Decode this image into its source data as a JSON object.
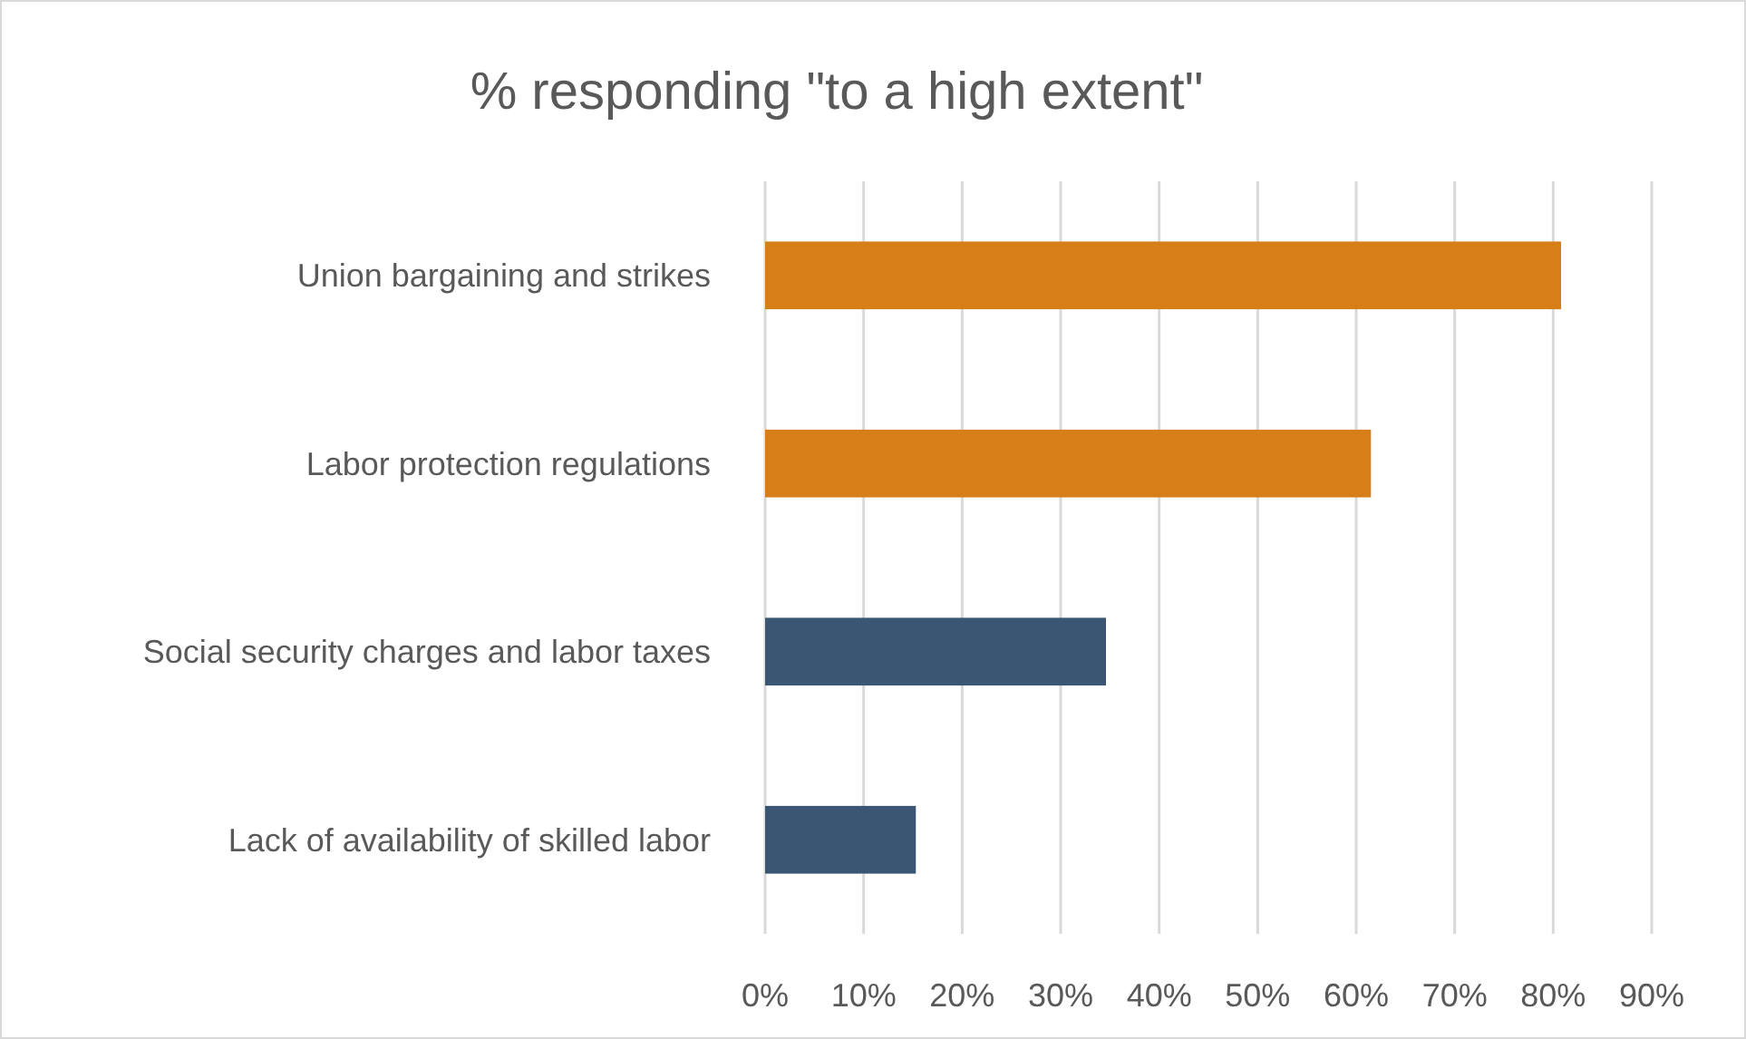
{
  "chart_data": {
    "type": "bar",
    "orientation": "horizontal",
    "title": "% responding \"to a high extent\"",
    "categories": [
      "Union bargaining and strikes",
      "Labor protection regulations",
      "Social security charges and labor taxes",
      "Lack of availability of skilled labor"
    ],
    "values": [
      80.8,
      61.5,
      34.6,
      15.3
    ],
    "colors": [
      "#d67e17",
      "#d67e17",
      "#3a5672",
      "#3a5672"
    ],
    "xlim": [
      0,
      90
    ],
    "xticks": [
      {
        "value": 0,
        "label": "0%"
      },
      {
        "value": 10,
        "label": "10%"
      },
      {
        "value": 20,
        "label": "20%"
      },
      {
        "value": 30,
        "label": "30%"
      },
      {
        "value": 40,
        "label": "40%"
      },
      {
        "value": 50,
        "label": "50%"
      },
      {
        "value": 60,
        "label": "60%"
      },
      {
        "value": 70,
        "label": "70%"
      },
      {
        "value": 80,
        "label": "80%"
      },
      {
        "value": 90,
        "label": "90%"
      }
    ],
    "grid": "x"
  }
}
